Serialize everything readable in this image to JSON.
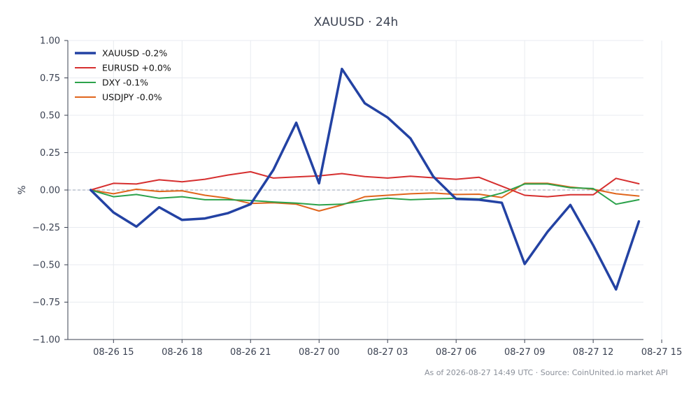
{
  "chart_data": {
    "type": "line",
    "title": "XAUUSD · 24h",
    "xlabel": "",
    "ylabel": "%",
    "ylim": [
      -1.0,
      1.0
    ],
    "yticks": [
      "1.00",
      "0.75",
      "0.50",
      "0.25",
      "0.00",
      "−0.25",
      "−0.50",
      "−0.75",
      "−1.00"
    ],
    "ytick_values": [
      1.0,
      0.75,
      0.5,
      0.25,
      0.0,
      -0.25,
      -0.5,
      -0.75,
      -1.0
    ],
    "xlim": [
      13.0,
      38.2
    ],
    "xticks": [
      "08-26 15",
      "08-26 18",
      "08-26 21",
      "08-27 00",
      "08-27 03",
      "08-27 06",
      "08-27 09",
      "08-27 12",
      "08-27 15"
    ],
    "xtick_values": [
      15,
      18,
      21,
      24,
      27,
      30,
      33,
      36,
      39
    ],
    "x": [
      14,
      15,
      16,
      17,
      18,
      19,
      20,
      21,
      22,
      23,
      24,
      25,
      26,
      27,
      28,
      29,
      30,
      31,
      32,
      33,
      34,
      35,
      36,
      37,
      38
    ],
    "grid": true,
    "zero_line": true,
    "legend_position": "top-left",
    "series": [
      {
        "name": "XAUUSD -0.2%",
        "color": "#2342a3",
        "width": 3.5,
        "values": [
          0.0,
          -0.15,
          -0.245,
          -0.115,
          -0.2,
          -0.19,
          -0.155,
          -0.095,
          0.135,
          0.45,
          0.045,
          0.81,
          0.58,
          0.485,
          0.345,
          0.09,
          -0.06,
          -0.065,
          -0.085,
          -0.495,
          -0.28,
          -0.1,
          -0.37,
          -0.665,
          -0.21
        ]
      },
      {
        "name": "EURUSD +0.0%",
        "color": "#d62f2f",
        "width": 2,
        "values": [
          0.0,
          0.045,
          0.04,
          0.068,
          0.055,
          0.072,
          0.1,
          0.122,
          0.08,
          0.088,
          0.095,
          0.11,
          0.09,
          0.08,
          0.092,
          0.082,
          0.072,
          0.085,
          0.025,
          -0.035,
          -0.045,
          -0.032,
          -0.032,
          0.078,
          0.042
        ]
      },
      {
        "name": "DXY -0.1%",
        "color": "#2ca24b",
        "width": 2,
        "values": [
          0.0,
          -0.045,
          -0.03,
          -0.055,
          -0.045,
          -0.065,
          -0.065,
          -0.07,
          -0.08,
          -0.088,
          -0.1,
          -0.095,
          -0.07,
          -0.055,
          -0.065,
          -0.06,
          -0.055,
          -0.06,
          -0.02,
          0.04,
          0.04,
          0.015,
          0.01,
          -0.095,
          -0.065
        ]
      },
      {
        "name": "USDJPY -0.0%",
        "color": "#e0651c",
        "width": 2,
        "values": [
          0.0,
          -0.025,
          0.005,
          -0.01,
          -0.005,
          -0.035,
          -0.055,
          -0.09,
          -0.085,
          -0.095,
          -0.14,
          -0.1,
          -0.045,
          -0.035,
          -0.025,
          -0.02,
          -0.03,
          -0.028,
          -0.05,
          0.045,
          0.045,
          0.02,
          0.005,
          -0.025,
          -0.04
        ]
      }
    ],
    "footer": "As of 2026-08-27 14:49 UTC · Source: CoinUnited.io market API"
  }
}
